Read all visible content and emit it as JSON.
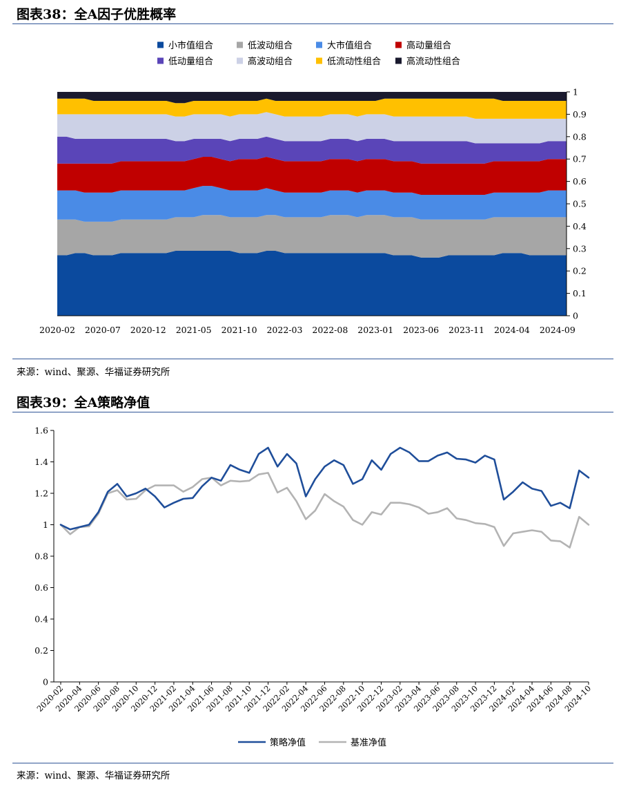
{
  "figure1": {
    "title": "图表38：全A因子优胜概率",
    "source": "来源：wind、聚源、华福证券研究所"
  },
  "figure2": {
    "title": "图表39：全A策略净值",
    "source": "来源：wind、聚源、华福证券研究所"
  },
  "chart_data": [
    {
      "type": "area",
      "stacked": true,
      "title": "",
      "xlabel": "",
      "ylabel": "",
      "ylim": [
        0,
        1
      ],
      "y_ticks": [
        "0",
        "0.1",
        "0.2",
        "0.3",
        "0.4",
        "0.5",
        "0.6",
        "0.7",
        "0.8",
        "0.9",
        "1"
      ],
      "y_axis_side": "right",
      "x_tick_labels": [
        "2020-02",
        "2020-07",
        "2020-12",
        "2021-05",
        "2021-10",
        "2022-03",
        "2022-08",
        "2023-01",
        "2023-06",
        "2023-11",
        "2024-04",
        "2024-09"
      ],
      "x_tick_start_month": "2020-02",
      "x_tick_step_months": 5,
      "legend_position": "top",
      "x": [
        "2020-02",
        "2020-03",
        "2020-04",
        "2020-05",
        "2020-06",
        "2020-07",
        "2020-08",
        "2020-09",
        "2020-10",
        "2020-11",
        "2020-12",
        "2021-01",
        "2021-02",
        "2021-03",
        "2021-04",
        "2021-05",
        "2021-06",
        "2021-07",
        "2021-08",
        "2021-09",
        "2021-10",
        "2021-11",
        "2021-12",
        "2022-01",
        "2022-02",
        "2022-03",
        "2022-04",
        "2022-05",
        "2022-06",
        "2022-07",
        "2022-08",
        "2022-09",
        "2022-10",
        "2022-11",
        "2022-12",
        "2023-01",
        "2023-02",
        "2023-03",
        "2023-04",
        "2023-05",
        "2023-06",
        "2023-07",
        "2023-08",
        "2023-09",
        "2023-10",
        "2023-11",
        "2023-12",
        "2024-01",
        "2024-02",
        "2024-03",
        "2024-04",
        "2024-05",
        "2024-06",
        "2024-07",
        "2024-08",
        "2024-09",
        "2024-10"
      ],
      "series": [
        {
          "name": "小市值组合",
          "color": "#0b4a9e",
          "values": [
            0.27,
            0.27,
            0.28,
            0.28,
            0.27,
            0.27,
            0.27,
            0.28,
            0.28,
            0.28,
            0.28,
            0.28,
            0.28,
            0.29,
            0.29,
            0.29,
            0.29,
            0.29,
            0.29,
            0.29,
            0.28,
            0.28,
            0.28,
            0.29,
            0.29,
            0.28,
            0.28,
            0.28,
            0.28,
            0.28,
            0.28,
            0.28,
            0.28,
            0.28,
            0.28,
            0.28,
            0.28,
            0.27,
            0.27,
            0.27,
            0.26,
            0.26,
            0.26,
            0.27,
            0.27,
            0.27,
            0.27,
            0.27,
            0.27,
            0.28,
            0.28,
            0.28,
            0.27,
            0.27,
            0.27,
            0.27,
            0.27
          ]
        },
        {
          "name": "低波动组合",
          "color": "#a6a6a6",
          "values": [
            0.16,
            0.16,
            0.15,
            0.14,
            0.15,
            0.15,
            0.15,
            0.15,
            0.15,
            0.15,
            0.15,
            0.15,
            0.15,
            0.15,
            0.15,
            0.15,
            0.16,
            0.16,
            0.16,
            0.15,
            0.16,
            0.16,
            0.16,
            0.16,
            0.16,
            0.16,
            0.16,
            0.16,
            0.16,
            0.16,
            0.17,
            0.17,
            0.17,
            0.16,
            0.17,
            0.17,
            0.17,
            0.17,
            0.17,
            0.17,
            0.17,
            0.17,
            0.17,
            0.16,
            0.16,
            0.16,
            0.16,
            0.16,
            0.17,
            0.16,
            0.16,
            0.16,
            0.17,
            0.17,
            0.17,
            0.17,
            0.17
          ]
        },
        {
          "name": "大市值组合",
          "color": "#4a8be6",
          "values": [
            0.13,
            0.13,
            0.13,
            0.13,
            0.13,
            0.13,
            0.13,
            0.13,
            0.13,
            0.13,
            0.13,
            0.13,
            0.13,
            0.12,
            0.12,
            0.13,
            0.13,
            0.13,
            0.12,
            0.12,
            0.12,
            0.12,
            0.12,
            0.12,
            0.11,
            0.11,
            0.11,
            0.11,
            0.11,
            0.11,
            0.11,
            0.11,
            0.11,
            0.11,
            0.11,
            0.11,
            0.11,
            0.11,
            0.11,
            0.11,
            0.11,
            0.11,
            0.11,
            0.11,
            0.11,
            0.11,
            0.11,
            0.11,
            0.11,
            0.11,
            0.11,
            0.11,
            0.11,
            0.11,
            0.12,
            0.12,
            0.12
          ]
        },
        {
          "name": "高动量组合",
          "color": "#c00000",
          "values": [
            0.12,
            0.12,
            0.12,
            0.13,
            0.13,
            0.13,
            0.13,
            0.13,
            0.13,
            0.13,
            0.13,
            0.13,
            0.13,
            0.13,
            0.13,
            0.13,
            0.13,
            0.13,
            0.13,
            0.13,
            0.14,
            0.14,
            0.14,
            0.14,
            0.14,
            0.14,
            0.14,
            0.14,
            0.14,
            0.14,
            0.14,
            0.14,
            0.14,
            0.14,
            0.14,
            0.14,
            0.14,
            0.14,
            0.14,
            0.14,
            0.14,
            0.14,
            0.14,
            0.14,
            0.14,
            0.14,
            0.14,
            0.14,
            0.14,
            0.14,
            0.14,
            0.14,
            0.14,
            0.14,
            0.14,
            0.14,
            0.14
          ]
        },
        {
          "name": "低动量组合",
          "color": "#5a45b8",
          "values": [
            0.12,
            0.12,
            0.11,
            0.11,
            0.11,
            0.11,
            0.11,
            0.1,
            0.1,
            0.1,
            0.1,
            0.1,
            0.1,
            0.09,
            0.09,
            0.09,
            0.08,
            0.08,
            0.09,
            0.09,
            0.09,
            0.09,
            0.09,
            0.09,
            0.09,
            0.09,
            0.09,
            0.09,
            0.09,
            0.09,
            0.09,
            0.09,
            0.09,
            0.09,
            0.09,
            0.09,
            0.09,
            0.09,
            0.09,
            0.09,
            0.1,
            0.1,
            0.1,
            0.1,
            0.1,
            0.1,
            0.09,
            0.09,
            0.08,
            0.08,
            0.08,
            0.08,
            0.08,
            0.08,
            0.08,
            0.08,
            0.08
          ]
        },
        {
          "name": "高波动组合",
          "color": "#ccd1e6",
          "values": [
            0.1,
            0.1,
            0.11,
            0.11,
            0.11,
            0.11,
            0.11,
            0.11,
            0.11,
            0.11,
            0.11,
            0.11,
            0.11,
            0.11,
            0.11,
            0.11,
            0.11,
            0.11,
            0.11,
            0.11,
            0.11,
            0.11,
            0.11,
            0.11,
            0.11,
            0.11,
            0.11,
            0.11,
            0.11,
            0.11,
            0.11,
            0.11,
            0.11,
            0.11,
            0.11,
            0.11,
            0.11,
            0.11,
            0.11,
            0.11,
            0.11,
            0.11,
            0.11,
            0.11,
            0.11,
            0.11,
            0.11,
            0.11,
            0.11,
            0.11,
            0.11,
            0.11,
            0.11,
            0.11,
            0.1,
            0.1,
            0.1
          ]
        },
        {
          "name": "低流动性组合",
          "color": "#ffc000",
          "values": [
            0.07,
            0.07,
            0.07,
            0.07,
            0.06,
            0.06,
            0.06,
            0.06,
            0.06,
            0.06,
            0.06,
            0.06,
            0.06,
            0.06,
            0.06,
            0.06,
            0.06,
            0.06,
            0.06,
            0.07,
            0.06,
            0.06,
            0.06,
            0.06,
            0.06,
            0.07,
            0.07,
            0.07,
            0.07,
            0.07,
            0.06,
            0.06,
            0.06,
            0.07,
            0.06,
            0.06,
            0.07,
            0.08,
            0.08,
            0.08,
            0.08,
            0.08,
            0.08,
            0.08,
            0.08,
            0.08,
            0.09,
            0.09,
            0.09,
            0.08,
            0.08,
            0.08,
            0.08,
            0.08,
            0.08,
            0.08,
            0.08
          ]
        },
        {
          "name": "高流动性组合",
          "color": "#1a1a2e",
          "values": [
            0.03,
            0.03,
            0.03,
            0.03,
            0.04,
            0.04,
            0.04,
            0.04,
            0.04,
            0.04,
            0.04,
            0.04,
            0.04,
            0.05,
            0.05,
            0.04,
            0.04,
            0.04,
            0.04,
            0.04,
            0.04,
            0.04,
            0.04,
            0.03,
            0.04,
            0.04,
            0.04,
            0.04,
            0.04,
            0.04,
            0.04,
            0.04,
            0.04,
            0.04,
            0.04,
            0.04,
            0.03,
            0.04,
            0.04,
            0.04,
            0.04,
            0.04,
            0.04,
            0.04,
            0.04,
            0.04,
            0.04,
            0.04,
            0.04,
            0.04,
            0.04,
            0.04,
            0.04,
            0.04,
            0.04,
            0.04,
            0.04
          ]
        }
      ]
    },
    {
      "type": "line",
      "title": "",
      "xlabel": "",
      "ylabel": "",
      "ylim": [
        0,
        1.6
      ],
      "y_ticks": [
        "0",
        "0.2",
        "0.4",
        "0.6",
        "0.8",
        "1",
        "1.2",
        "1.4",
        "1.6"
      ],
      "legend_position": "bottom",
      "x_tick_labels": [
        "2020-02",
        "2020-04",
        "2020-06",
        "2020-08",
        "2020-10",
        "2020-12",
        "2021-02",
        "2021-04",
        "2021-06",
        "2021-08",
        "2021-10",
        "2021-12",
        "2022-02",
        "2022-04",
        "2022-06",
        "2022-08",
        "2022-10",
        "2022-12",
        "2023-02",
        "2023-04",
        "2023-06",
        "2023-08",
        "2023-10",
        "2023-12",
        "2024-02",
        "2024-04",
        "2024-06",
        "2024-08",
        "2024-10"
      ],
      "x": [
        "2020-02",
        "2020-03",
        "2020-04",
        "2020-05",
        "2020-06",
        "2020-07",
        "2020-08",
        "2020-09",
        "2020-10",
        "2020-11",
        "2020-12",
        "2021-01",
        "2021-02",
        "2021-03",
        "2021-04",
        "2021-05",
        "2021-06",
        "2021-07",
        "2021-08",
        "2021-09",
        "2021-10",
        "2021-11",
        "2021-12",
        "2022-01",
        "2022-02",
        "2022-03",
        "2022-04",
        "2022-05",
        "2022-06",
        "2022-07",
        "2022-08",
        "2022-09",
        "2022-10",
        "2022-11",
        "2022-12",
        "2023-01",
        "2023-02",
        "2023-03",
        "2023-04",
        "2023-05",
        "2023-06",
        "2023-07",
        "2023-08",
        "2023-09",
        "2023-10",
        "2023-11",
        "2023-12",
        "2024-01",
        "2024-02",
        "2024-03",
        "2024-04",
        "2024-05",
        "2024-06",
        "2024-07",
        "2024-08",
        "2024-09",
        "2024-10"
      ],
      "series": [
        {
          "name": "策略净值",
          "color": "#1f4e9a",
          "width": 2.6,
          "values": [
            1.0,
            0.97,
            0.985,
            1.0,
            1.08,
            1.21,
            1.26,
            1.18,
            1.2,
            1.23,
            1.18,
            1.11,
            1.14,
            1.165,
            1.17,
            1.245,
            1.3,
            1.28,
            1.38,
            1.35,
            1.33,
            1.45,
            1.49,
            1.37,
            1.45,
            1.39,
            1.18,
            1.29,
            1.37,
            1.41,
            1.38,
            1.26,
            1.29,
            1.41,
            1.35,
            1.45,
            1.49,
            1.46,
            1.405,
            1.405,
            1.44,
            1.46,
            1.42,
            1.415,
            1.395,
            1.44,
            1.415,
            1.16,
            1.21,
            1.27,
            1.23,
            1.215,
            1.12,
            1.14,
            1.105,
            1.345,
            1.3
          ]
        },
        {
          "name": "基准净值",
          "color": "#b3b3b3",
          "width": 2.6,
          "values": [
            1.0,
            0.94,
            0.985,
            0.99,
            1.07,
            1.2,
            1.22,
            1.16,
            1.165,
            1.22,
            1.25,
            1.25,
            1.25,
            1.21,
            1.24,
            1.29,
            1.3,
            1.25,
            1.28,
            1.275,
            1.28,
            1.32,
            1.33,
            1.205,
            1.235,
            1.15,
            1.035,
            1.09,
            1.195,
            1.15,
            1.115,
            1.03,
            1.0,
            1.08,
            1.065,
            1.14,
            1.14,
            1.13,
            1.11,
            1.07,
            1.08,
            1.105,
            1.04,
            1.03,
            1.01,
            1.005,
            0.985,
            0.865,
            0.945,
            0.955,
            0.965,
            0.955,
            0.9,
            0.895,
            0.855,
            1.05,
            1.0
          ]
        }
      ]
    }
  ]
}
